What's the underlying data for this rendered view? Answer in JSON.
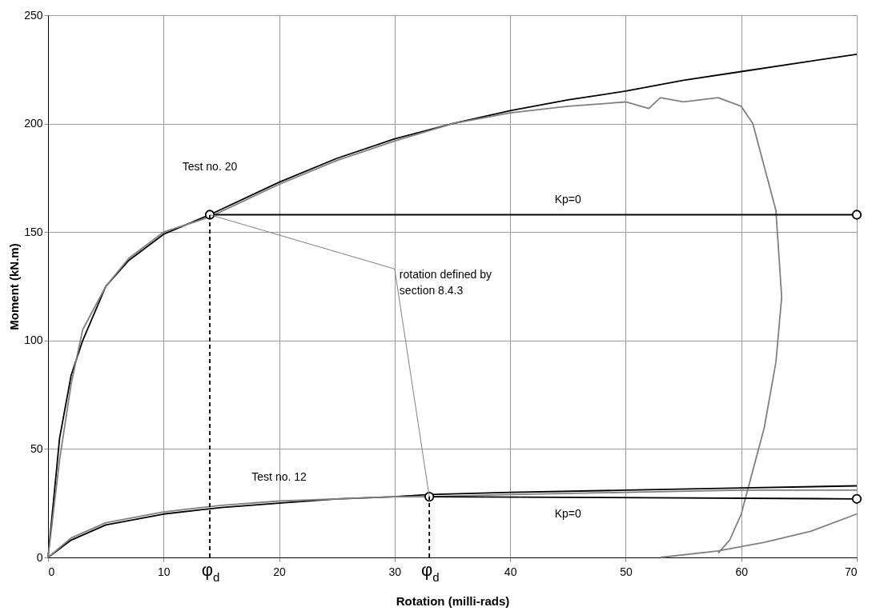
{
  "chart_data": {
    "type": "line",
    "xlabel": "Rotation (milli-rads)",
    "ylabel": "Moment (kN.m)",
    "xlim": [
      0,
      70
    ],
    "ylim": [
      0,
      250
    ],
    "xticks": [
      0,
      10,
      20,
      30,
      40,
      50,
      60,
      70
    ],
    "yticks": [
      0,
      50,
      100,
      150,
      200,
      250
    ],
    "grid": true,
    "line_style": "solid",
    "series": [
      {
        "color": "#000000",
        "x": [
          0,
          1,
          2,
          3,
          5,
          7,
          10,
          14,
          20,
          25,
          30,
          35,
          40,
          45,
          50,
          55,
          60,
          65,
          70
        ],
        "values": [
          0,
          55,
          84,
          100,
          125,
          137,
          149,
          158,
          173,
          184,
          193,
          200,
          206,
          211,
          215,
          220,
          224,
          228,
          232
        ]
      },
      {
        "color": "#808080",
        "x": [
          0,
          1,
          2,
          3,
          5,
          7,
          10,
          14,
          20,
          25,
          30,
          35,
          40,
          45,
          50,
          52,
          53,
          55,
          58,
          60,
          61,
          62,
          63,
          63.5,
          63,
          62,
          61,
          60,
          59,
          58
        ],
        "values": [
          0,
          45,
          80,
          105,
          125,
          138,
          150,
          157,
          172,
          183,
          192,
          200,
          205,
          208,
          210,
          207,
          212,
          210,
          212,
          208,
          200,
          180,
          160,
          120,
          90,
          60,
          40,
          20,
          8,
          2
        ]
      },
      {
        "color": "#808080",
        "x": [
          53,
          58,
          62,
          66,
          70
        ],
        "values": [
          0,
          3,
          7,
          12,
          20
        ]
      },
      {
        "color": "#000000",
        "x": [
          14,
          70
        ],
        "values": [
          158,
          158
        ],
        "marker": "circle"
      },
      {
        "color": "#000000",
        "x": [
          0,
          2,
          5,
          10,
          15,
          20,
          25,
          30,
          33,
          40,
          50,
          60,
          70
        ],
        "values": [
          0,
          8,
          15,
          20,
          23,
          25,
          27,
          28,
          29,
          30,
          31,
          32,
          33
        ]
      },
      {
        "color": "#808080",
        "x": [
          0,
          2,
          5,
          10,
          15,
          20,
          25,
          30,
          33,
          40,
          50,
          60,
          70
        ],
        "values": [
          0,
          9,
          16,
          21,
          24,
          26,
          27,
          28,
          28,
          29,
          30,
          31,
          31
        ]
      },
      {
        "color": "#000000",
        "x": [
          33,
          70
        ],
        "values": [
          28,
          27
        ],
        "marker": "circle"
      },
      {
        "color": "#000000",
        "x": [
          14,
          14
        ],
        "values": [
          0,
          158
        ],
        "line_style": "dashed"
      },
      {
        "color": "#000000",
        "x": [
          33,
          33
        ],
        "values": [
          0,
          28
        ],
        "line_style": "dashed"
      }
    ],
    "annotations": [
      "Test no. 20",
      "Kp=0",
      {
        "text": "rotation defined by section 8.4.3",
        "x": 33,
        "y": 28
      },
      "Test no. 12",
      "Kp=0",
      "φ$_{d}$",
      "φ$_{d}$"
    ]
  }
}
